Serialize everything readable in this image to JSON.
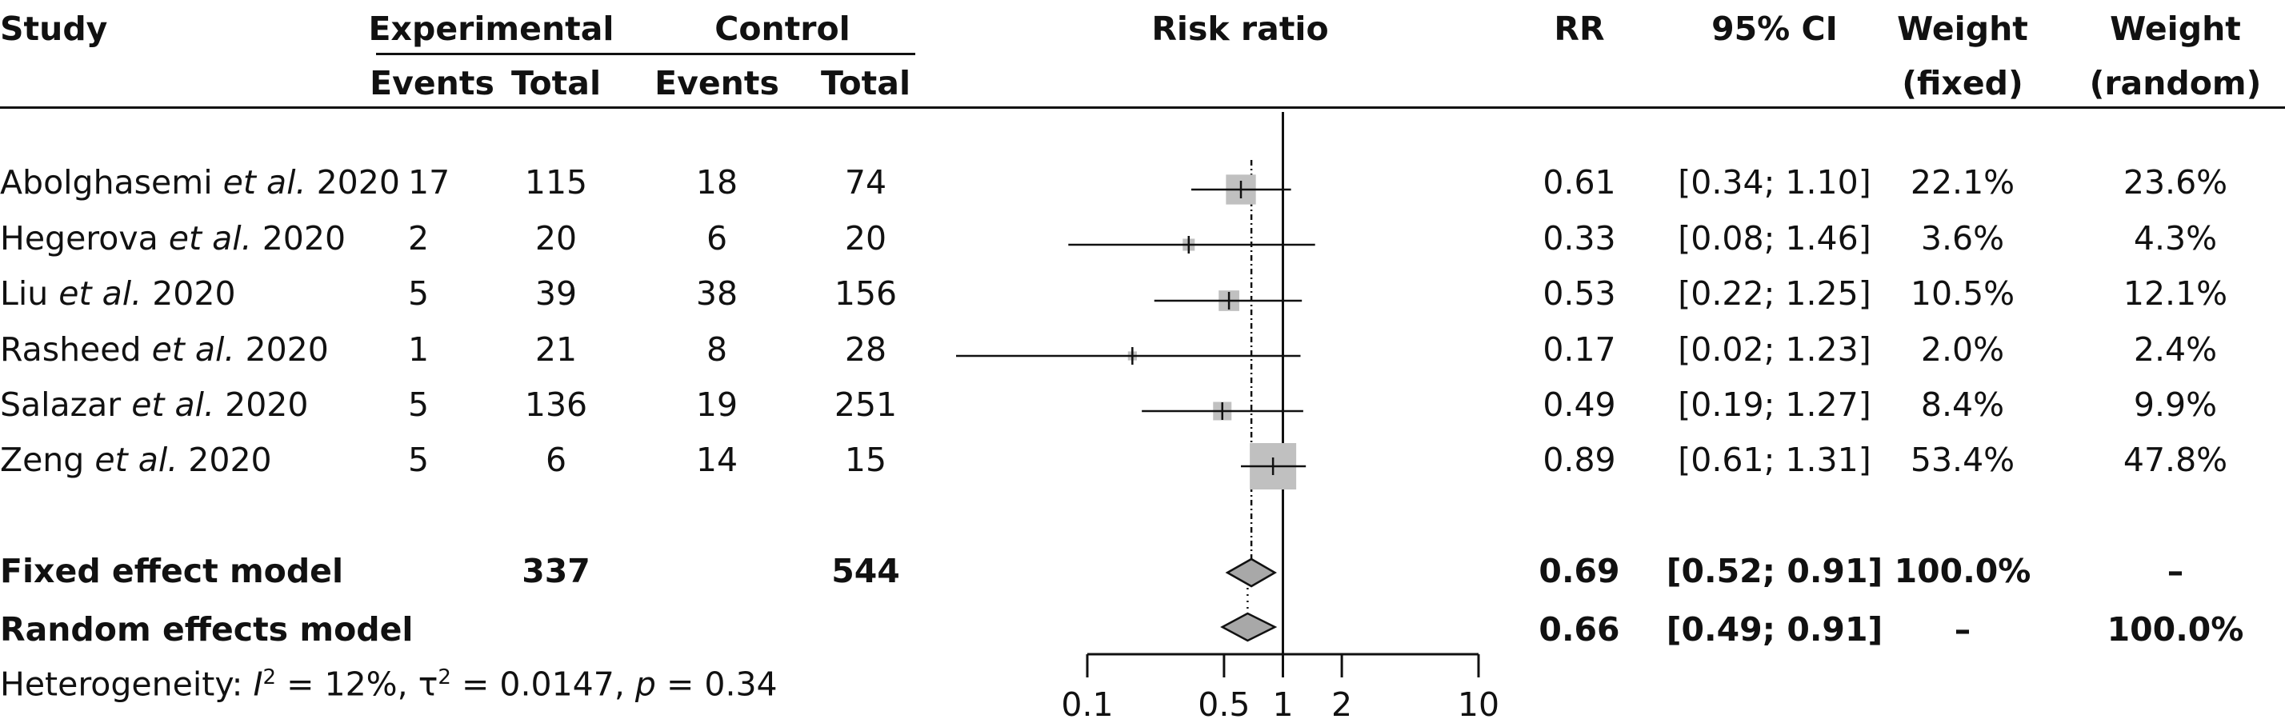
{
  "chart_data": {
    "type": "forest",
    "scale": "log",
    "xlabel": "Risk ratio",
    "xlim": [
      0.1,
      10
    ],
    "ticks": [
      {
        "value": 0.1,
        "label": "0.1"
      },
      {
        "value": 0.5,
        "label": "0.5"
      },
      {
        "value": 1,
        "label": "1"
      },
      {
        "value": 2,
        "label": "2"
      },
      {
        "value": 10,
        "label": "10"
      }
    ],
    "colors": {
      "box": "#c0c0c0",
      "diamond": "#a8a8a8",
      "line": "#111111"
    },
    "headers": {
      "study": "Study",
      "experimental": "Experimental",
      "control": "Control",
      "events": "Events",
      "total": "Total",
      "plot": "Risk ratio",
      "rr": "RR",
      "ci": "95% CI",
      "weight_fixed_1": "Weight",
      "weight_fixed_2": "(fixed)",
      "weight_random_1": "Weight",
      "weight_random_2": "(random)"
    },
    "studies": [
      {
        "author": "Abolghasemi",
        "etal": "et al.",
        "year": "2020",
        "exp_events": "17",
        "exp_total": "115",
        "ctrl_events": "18",
        "ctrl_total": "74",
        "rr": 0.61,
        "lo": 0.34,
        "hi": 1.1,
        "rr_text": "0.61",
        "ci_text": "[0.34; 1.10]",
        "w_fixed": "22.1%",
        "w_random": "23.6%"
      },
      {
        "author": "Hegerova",
        "etal": "et al.",
        "year": "2020",
        "exp_events": "2",
        "exp_total": "20",
        "ctrl_events": "6",
        "ctrl_total": "20",
        "rr": 0.33,
        "lo": 0.08,
        "hi": 1.46,
        "rr_text": "0.33",
        "ci_text": "[0.08; 1.46]",
        "w_fixed": "3.6%",
        "w_random": "4.3%"
      },
      {
        "author": "Liu",
        "etal": "et al.",
        "year": "2020",
        "exp_events": "5",
        "exp_total": "39",
        "ctrl_events": "38",
        "ctrl_total": "156",
        "rr": 0.53,
        "lo": 0.22,
        "hi": 1.25,
        "rr_text": "0.53",
        "ci_text": "[0.22; 1.25]",
        "w_fixed": "10.5%",
        "w_random": "12.1%"
      },
      {
        "author": "Rasheed",
        "etal": "et al.",
        "year": "2020",
        "exp_events": "1",
        "exp_total": "21",
        "ctrl_events": "8",
        "ctrl_total": "28",
        "rr": 0.17,
        "lo": 0.02,
        "hi": 1.23,
        "rr_text": "0.17",
        "ci_text": "[0.02; 1.23]",
        "w_fixed": "2.0%",
        "w_random": "2.4%"
      },
      {
        "author": "Salazar",
        "etal": "et al.",
        "year": "2020",
        "exp_events": "5",
        "exp_total": "136",
        "ctrl_events": "19",
        "ctrl_total": "251",
        "rr": 0.49,
        "lo": 0.19,
        "hi": 1.27,
        "rr_text": "0.49",
        "ci_text": "[0.19; 1.27]",
        "w_fixed": "8.4%",
        "w_random": "9.9%"
      },
      {
        "author": "Zeng",
        "etal": "et al.",
        "year": "2020",
        "exp_events": "5",
        "exp_total": "6",
        "ctrl_events": "14",
        "ctrl_total": "15",
        "rr": 0.89,
        "lo": 0.61,
        "hi": 1.31,
        "rr_text": "0.89",
        "ci_text": "[0.61; 1.31]",
        "w_fixed": "53.4%",
        "w_random": "47.8%"
      }
    ],
    "fixed": {
      "label": "Fixed effect model",
      "exp_total": "337",
      "ctrl_total": "544",
      "rr": 0.69,
      "lo": 0.52,
      "hi": 0.91,
      "rr_text": "0.69",
      "ci_text": "[0.52; 0.91]",
      "w_fixed": "100.0%",
      "w_random": "–"
    },
    "random": {
      "label": "Random effects model",
      "rr": 0.66,
      "lo": 0.49,
      "hi": 0.91,
      "rr_text": "0.66",
      "ci_text": "[0.49; 0.91]",
      "w_fixed": "–",
      "w_random": "100.0%"
    },
    "heterogeneity": {
      "prefix": "Heterogeneity: ",
      "i2_symbol": "I",
      "i2_sup": "2",
      "i2_value": " = 12%, ",
      "tau_symbol": "τ",
      "tau_sup": "2",
      "tau_value": " = 0.0147, ",
      "p_symbol": "p",
      "p_value": " = 0.34"
    }
  }
}
